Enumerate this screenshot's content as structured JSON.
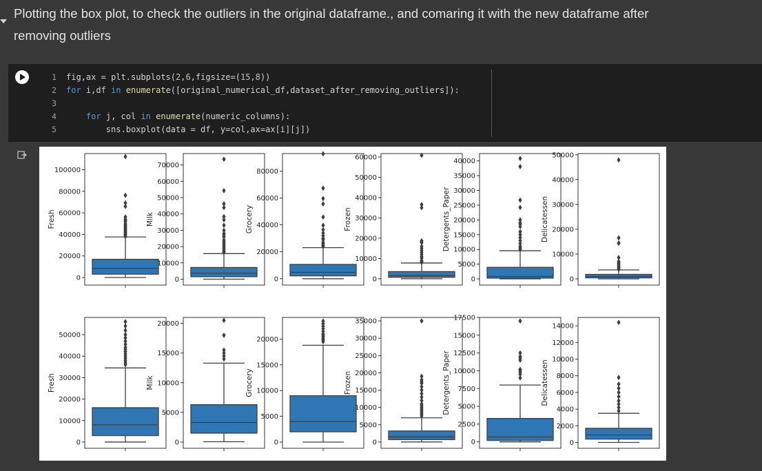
{
  "text_cell": {
    "heading_line1": "Plotting the box plot, to check the outliers in the original dataframe., and comaring it with the new dataframe after",
    "heading_line2": "removing outliers"
  },
  "code_cell": {
    "line_numbers": [
      "1",
      "2",
      "3",
      "4",
      "5"
    ],
    "lines": [
      "fig,ax = plt.subplots(2,6,figsize=(15,8))",
      "for i,df in enumerate([original_numerical_df,dataset_after_removing_outliers]):",
      "",
      "    for j, col in enumerate(numeric_columns):",
      "        sns.boxplot(data = df, y=col,ax=ax[i][j])"
    ]
  },
  "colors": {
    "box_fill": "#2e76b4",
    "box_edge": "#3f3f3f",
    "background": "#383838",
    "code_bg": "#1e1e1e"
  },
  "chart_data": [
    {
      "type": "box",
      "row": "original",
      "ylabel": "Fresh",
      "yticks": [
        0,
        20000,
        40000,
        60000,
        80000,
        100000
      ],
      "ylim": [
        -7000,
        115000
      ],
      "box": {
        "whisker_low": 3,
        "q1": 3128,
        "median": 8504,
        "q3": 16934,
        "whisker_high": 37642
      },
      "outliers": [
        112151,
        76237,
        69200,
        66000,
        56159,
        54000,
        53000,
        52000,
        50000,
        49000,
        48000,
        47000,
        46000,
        45000,
        44000,
        43000,
        42000,
        41000,
        40000,
        39000,
        38000
      ]
    },
    {
      "type": "box",
      "row": "original",
      "ylabel": "Milk",
      "yticks": [
        0,
        10000,
        20000,
        30000,
        40000,
        50000,
        60000,
        70000
      ],
      "ylim": [
        -3600,
        77000
      ],
      "box": {
        "whisker_low": 55,
        "q1": 1533,
        "median": 3627,
        "q3": 7190,
        "whisker_high": 15676
      },
      "outliers": [
        73498,
        54259,
        46197,
        43950,
        38369,
        36423,
        33000,
        29892,
        28000,
        27000,
        25862,
        24000,
        23000,
        22000,
        21000,
        20000,
        19000,
        18000,
        17000,
        16500
      ]
    },
    {
      "type": "box",
      "row": "original",
      "ylabel": "Grocery",
      "yticks": [
        0,
        20000,
        40000,
        60000,
        80000
      ],
      "ylim": [
        -4700,
        93000
      ],
      "box": {
        "whisker_low": 3,
        "q1": 2153,
        "median": 4756,
        "q3": 10656,
        "whisker_high": 23127
      },
      "outliers": [
        92780,
        67298,
        59598,
        55571,
        45828,
        39694,
        36486,
        34000,
        32000,
        30000,
        28986,
        27000,
        26000,
        25000,
        24500,
        24000
      ]
    },
    {
      "type": "box",
      "row": "original",
      "ylabel": "Frozen",
      "yticks": [
        0,
        10000,
        20000,
        30000,
        40000,
        50000,
        60000
      ],
      "ylim": [
        -3100,
        61700
      ],
      "box": {
        "whisker_low": 25,
        "q1": 742,
        "median": 1526,
        "q3": 3554,
        "whisker_high": 7782
      },
      "outliers": [
        60869,
        36534,
        35009,
        18711,
        18028,
        17866,
        16000,
        15000,
        14000,
        13000,
        12000,
        11000,
        10155,
        9000,
        8500,
        8000
      ]
    },
    {
      "type": "box",
      "row": "original",
      "ylabel": "Detergents_Paper",
      "yticks": [
        0,
        5000,
        10000,
        15000,
        20000,
        25000,
        30000,
        35000,
        40000
      ],
      "ylim": [
        -2100,
        42500
      ],
      "box": {
        "whisker_low": 3,
        "q1": 257,
        "median": 816,
        "q3": 3922,
        "whisker_high": 9529
      },
      "outliers": [
        40827,
        38102,
        26701,
        24231,
        20000,
        19000,
        18594,
        17740,
        16000,
        15000,
        14000,
        13000,
        12000,
        11000,
        10500,
        10000
      ]
    },
    {
      "type": "box",
      "row": "original",
      "ylabel": "Delicatessen",
      "yticks": [
        0,
        10000,
        20000,
        30000,
        40000,
        50000
      ],
      "ylim": [
        -2500,
        50500
      ],
      "box": {
        "whisker_low": 3,
        "q1": 408,
        "median": 966,
        "q3": 1820,
        "whisker_high": 3600
      },
      "outliers": [
        47943,
        16523,
        14472,
        14351,
        8550,
        7000,
        6500,
        6000,
        5500,
        5000,
        4500,
        4000,
        3800
      ]
    },
    {
      "type": "box",
      "row": "after_removing_outliers",
      "ylabel": "Fresh",
      "yticks": [
        0,
        10000,
        20000,
        30000,
        40000,
        50000
      ],
      "ylim": [
        -2900,
        58000
      ],
      "box": {
        "whisker_low": 3,
        "q1": 3000,
        "median": 8000,
        "q3": 16000,
        "whisker_high": 34500
      },
      "outliers": [
        56000,
        54000,
        52000,
        50000,
        48500,
        47000,
        45500,
        44000,
        43000,
        42000,
        41000,
        40000,
        39000,
        38000,
        37000,
        36000
      ]
    },
    {
      "type": "box",
      "row": "after_removing_outliers",
      "ylabel": "Milk",
      "yticks": [
        0,
        5000,
        10000,
        15000,
        20000
      ],
      "ylim": [
        -1050,
        21000
      ],
      "box": {
        "whisker_low": 55,
        "q1": 1500,
        "median": 3300,
        "q3": 6300,
        "whisker_high": 13300
      },
      "outliers": [
        20500,
        18000,
        15500,
        15000,
        14500,
        14000
      ]
    },
    {
      "type": "box",
      "row": "after_removing_outliers",
      "ylabel": "Grocery",
      "yticks": [
        0,
        5000,
        10000,
        15000,
        20000
      ],
      "ylim": [
        -1200,
        24200
      ],
      "box": {
        "whisker_low": 3,
        "q1": 2000,
        "median": 4000,
        "q3": 9000,
        "whisker_high": 18800
      },
      "outliers": [
        23500,
        23000,
        22500,
        22000,
        21500,
        21000,
        20800,
        20500,
        20200,
        20000,
        19800,
        19500
      ]
    },
    {
      "type": "box",
      "row": "after_removing_outliers",
      "ylabel": "Frozen",
      "yticks": [
        0,
        5000,
        10000,
        15000,
        20000,
        25000,
        30000,
        35000
      ],
      "ylim": [
        -1800,
        36000
      ],
      "box": {
        "whisker_low": 25,
        "q1": 700,
        "median": 1500,
        "q3": 3200,
        "whisker_high": 7000
      },
      "outliers": [
        35000,
        19000,
        18000,
        17500,
        17000,
        16000,
        15000,
        14000,
        13000,
        12000,
        11000,
        10500,
        10000,
        9500,
        9000,
        8500,
        8000,
        7500
      ]
    },
    {
      "type": "box",
      "row": "after_removing_outliers",
      "ylabel": "Detergents_Paper",
      "yticks": [
        0,
        2500,
        5000,
        7500,
        10000,
        12500,
        15000,
        17500
      ],
      "ylim": [
        -900,
        17500
      ],
      "box": {
        "whisker_low": 3,
        "q1": 200,
        "median": 700,
        "q3": 3300,
        "whisker_high": 8000
      },
      "outliers": [
        17000,
        12500,
        12000,
        11800,
        11500,
        10200,
        10000,
        9800,
        9500,
        9000
      ]
    },
    {
      "type": "box",
      "row": "after_removing_outliers",
      "ylabel": "Delicatessen",
      "yticks": [
        0,
        2000,
        4000,
        6000,
        8000,
        10000,
        12000,
        14000
      ],
      "ylim": [
        -700,
        15000
      ],
      "box": {
        "whisker_low": 3,
        "q1": 400,
        "median": 900,
        "q3": 1700,
        "whisker_high": 3500
      },
      "outliers": [
        14400,
        7800,
        7000,
        6500,
        6000,
        5500,
        5000,
        4600,
        4200,
        3800
      ]
    }
  ]
}
